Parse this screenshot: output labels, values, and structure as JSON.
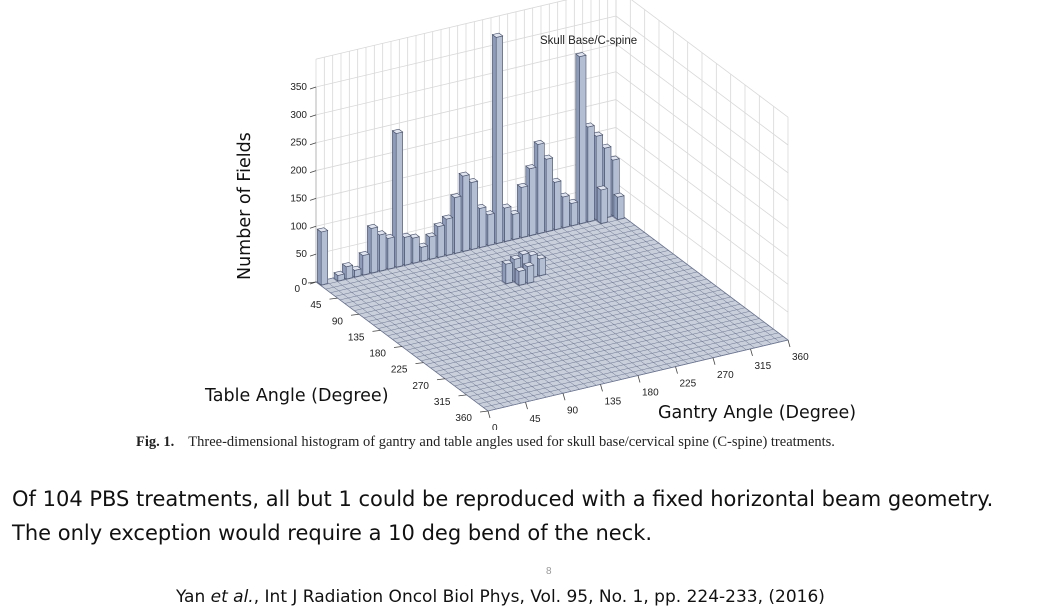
{
  "chart_data": {
    "type": "bar3d",
    "title": "Skull Base/C-spine",
    "zlabel": "Number of Fields",
    "xlabel": "Table Angle (Degree)",
    "ylabel": "Gantry Angle (Degree)",
    "z_ticks": [
      "0",
      "50",
      "100",
      "150",
      "200",
      "250",
      "300",
      "350"
    ],
    "zlim": [
      0,
      350
    ],
    "table_ticks": [
      "0",
      "45",
      "90",
      "135",
      "180",
      "225",
      "270",
      "315",
      "360"
    ],
    "gantry_ticks": [
      "0",
      "45",
      "90",
      "135",
      "180",
      "225",
      "270",
      "315",
      "360"
    ],
    "bin_size_deg": 10,
    "grid": true,
    "series": [
      {
        "bars": [
          {
            "table": 0,
            "gantry": 0,
            "count": 95
          },
          {
            "table": 0,
            "gantry": 20,
            "count": 10
          },
          {
            "table": 0,
            "gantry": 30,
            "count": 22
          },
          {
            "table": 0,
            "gantry": 40,
            "count": 12
          },
          {
            "table": 0,
            "gantry": 50,
            "count": 35
          },
          {
            "table": 0,
            "gantry": 60,
            "count": 80
          },
          {
            "table": 0,
            "gantry": 70,
            "count": 65
          },
          {
            "table": 0,
            "gantry": 80,
            "count": 55
          },
          {
            "table": 0,
            "gantry": 90,
            "count": 240
          },
          {
            "table": 0,
            "gantry": 100,
            "count": 50
          },
          {
            "table": 0,
            "gantry": 110,
            "count": 45
          },
          {
            "table": 0,
            "gantry": 120,
            "count": 25
          },
          {
            "table": 0,
            "gantry": 130,
            "count": 40
          },
          {
            "table": 0,
            "gantry": 140,
            "count": 55
          },
          {
            "table": 0,
            "gantry": 150,
            "count": 65
          },
          {
            "table": 0,
            "gantry": 160,
            "count": 100
          },
          {
            "table": 0,
            "gantry": 170,
            "count": 135
          },
          {
            "table": 0,
            "gantry": 180,
            "count": 120
          },
          {
            "table": 0,
            "gantry": 190,
            "count": 70
          },
          {
            "table": 0,
            "gantry": 200,
            "count": 55
          },
          {
            "table": 0,
            "gantry": 210,
            "count": 370
          },
          {
            "table": 0,
            "gantry": 220,
            "count": 60
          },
          {
            "table": 0,
            "gantry": 230,
            "count": 45
          },
          {
            "table": 0,
            "gantry": 240,
            "count": 90
          },
          {
            "table": 0,
            "gantry": 250,
            "count": 120
          },
          {
            "table": 0,
            "gantry": 260,
            "count": 160
          },
          {
            "table": 0,
            "gantry": 270,
            "count": 130
          },
          {
            "table": 0,
            "gantry": 280,
            "count": 85
          },
          {
            "table": 0,
            "gantry": 290,
            "count": 55
          },
          {
            "table": 0,
            "gantry": 300,
            "count": 40
          },
          {
            "table": 0,
            "gantry": 310,
            "count": 300
          },
          {
            "table": 0,
            "gantry": 320,
            "count": 170
          },
          {
            "table": 0,
            "gantry": 330,
            "count": 150
          },
          {
            "table": 0,
            "gantry": 340,
            "count": 125
          },
          {
            "table": 0,
            "gantry": 350,
            "count": 100
          },
          {
            "table": 10,
            "gantry": 330,
            "count": 60
          },
          {
            "table": 10,
            "gantry": 350,
            "count": 40
          },
          {
            "table": 90,
            "gantry": 170,
            "count": 35
          },
          {
            "table": 90,
            "gantry": 180,
            "count": 40
          },
          {
            "table": 90,
            "gantry": 190,
            "count": 45
          },
          {
            "table": 90,
            "gantry": 200,
            "count": 40
          },
          {
            "table": 90,
            "gantry": 210,
            "count": 30
          },
          {
            "table": 100,
            "gantry": 180,
            "count": 25
          },
          {
            "table": 100,
            "gantry": 190,
            "count": 30
          }
        ]
      }
    ]
  },
  "figure": {
    "label": "Fig. 1.",
    "caption": "Three-dimensional histogram of gantry and table angles used for skull base/cervical spine (C-spine) treatments."
  },
  "slide": {
    "text_line1": "Of 104 PBS treatments, all but 1 could be reproduced with a fixed horizontal beam geometry.",
    "text_line2": "The only exception would require a 10 deg bend of the neck.",
    "page_number": "8",
    "citation_authors": "Yan ",
    "citation_etal": "et al.",
    "citation_rest": ", Int J Radiation Oncol Biol Phys, Vol. 95, No. 1, pp. 224-233, (2016)"
  },
  "colors": {
    "bar_top": "#dfe4ee",
    "bar_left": "#b3bed3",
    "bar_right": "#8d9bb8",
    "bar_edge": "#47506a",
    "floor": "#c9cfdb",
    "floor_line": "#6b7590",
    "grid": "#d8d8d8",
    "text": "#222222"
  }
}
